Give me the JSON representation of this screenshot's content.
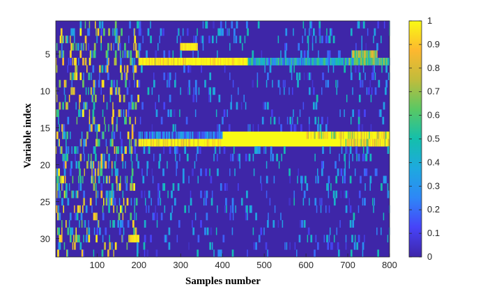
{
  "chart_data": {
    "type": "heatmap",
    "title": "",
    "xlabel": "Samples number",
    "ylabel": "Variable index",
    "x_range": [
      1,
      800
    ],
    "y_range": [
      1,
      32
    ],
    "x_ticks": [
      100,
      200,
      300,
      400,
      500,
      600,
      700,
      800
    ],
    "y_ticks": [
      5,
      10,
      15,
      20,
      25,
      30
    ],
    "colorbar": {
      "colormap": "parula",
      "range": [
        0,
        1
      ],
      "ticks": [
        "0",
        "0.1",
        "0.2",
        "0.3",
        "0.4",
        "0.5",
        "0.6",
        "0.7",
        "0.8",
        "0.9",
        "1"
      ],
      "stops": [
        "#3e26a8",
        "#4743f8",
        "#2e87f7",
        "#1ea9df",
        "#14bfac",
        "#59c864",
        "#c0bc3c",
        "#fdb82f",
        "#f9fa14"
      ]
    },
    "background_value": 0.0,
    "dense_bands": [
      {
        "variable": 6,
        "from_sample": 200,
        "to_sample": 320,
        "base_value": 0.9,
        "spread": 0.2
      },
      {
        "variable": 6,
        "from_sample": 320,
        "to_sample": 460,
        "base_value": 0.95,
        "spread": 0.1
      },
      {
        "variable": 6,
        "from_sample": 460,
        "to_sample": 700,
        "base_value": 0.3,
        "spread": 0.3
      },
      {
        "variable": 6,
        "from_sample": 700,
        "to_sample": 800,
        "base_value": 0.45,
        "spread": 0.3
      },
      {
        "variable": 5,
        "from_sample": 710,
        "to_sample": 770,
        "base_value": 0.55,
        "spread": 0.3
      },
      {
        "variable": 4,
        "from_sample": 300,
        "to_sample": 340,
        "base_value": 0.95,
        "spread": 0.05
      },
      {
        "variable": 16,
        "from_sample": 400,
        "to_sample": 600,
        "base_value": 1.0,
        "spread": 0.0
      },
      {
        "variable": 16,
        "from_sample": 600,
        "to_sample": 800,
        "base_value": 0.85,
        "spread": 0.4
      },
      {
        "variable": 16,
        "from_sample": 200,
        "to_sample": 400,
        "base_value": 0.1,
        "spread": 0.3
      },
      {
        "variable": 17,
        "from_sample": 200,
        "to_sample": 400,
        "base_value": 0.9,
        "spread": 0.2
      },
      {
        "variable": 17,
        "from_sample": 400,
        "to_sample": 680,
        "base_value": 1.0,
        "spread": 0.0
      },
      {
        "variable": 17,
        "from_sample": 680,
        "to_sample": 800,
        "base_value": 0.75,
        "spread": 0.4
      },
      {
        "variable": 30,
        "from_sample": 180,
        "to_sample": 200,
        "base_value": 0.95,
        "spread": 0.05
      }
    ],
    "sparse_activity": [
      {
        "variables": [
          1,
          32
        ],
        "from_sample": 1,
        "to_sample": 200,
        "density": 0.09,
        "value_range": [
          0.1,
          1.0
        ]
      },
      {
        "variables": [
          1,
          32
        ],
        "from_sample": 200,
        "to_sample": 800,
        "density": 0.035,
        "value_range": [
          0.05,
          0.5
        ]
      }
    ]
  }
}
